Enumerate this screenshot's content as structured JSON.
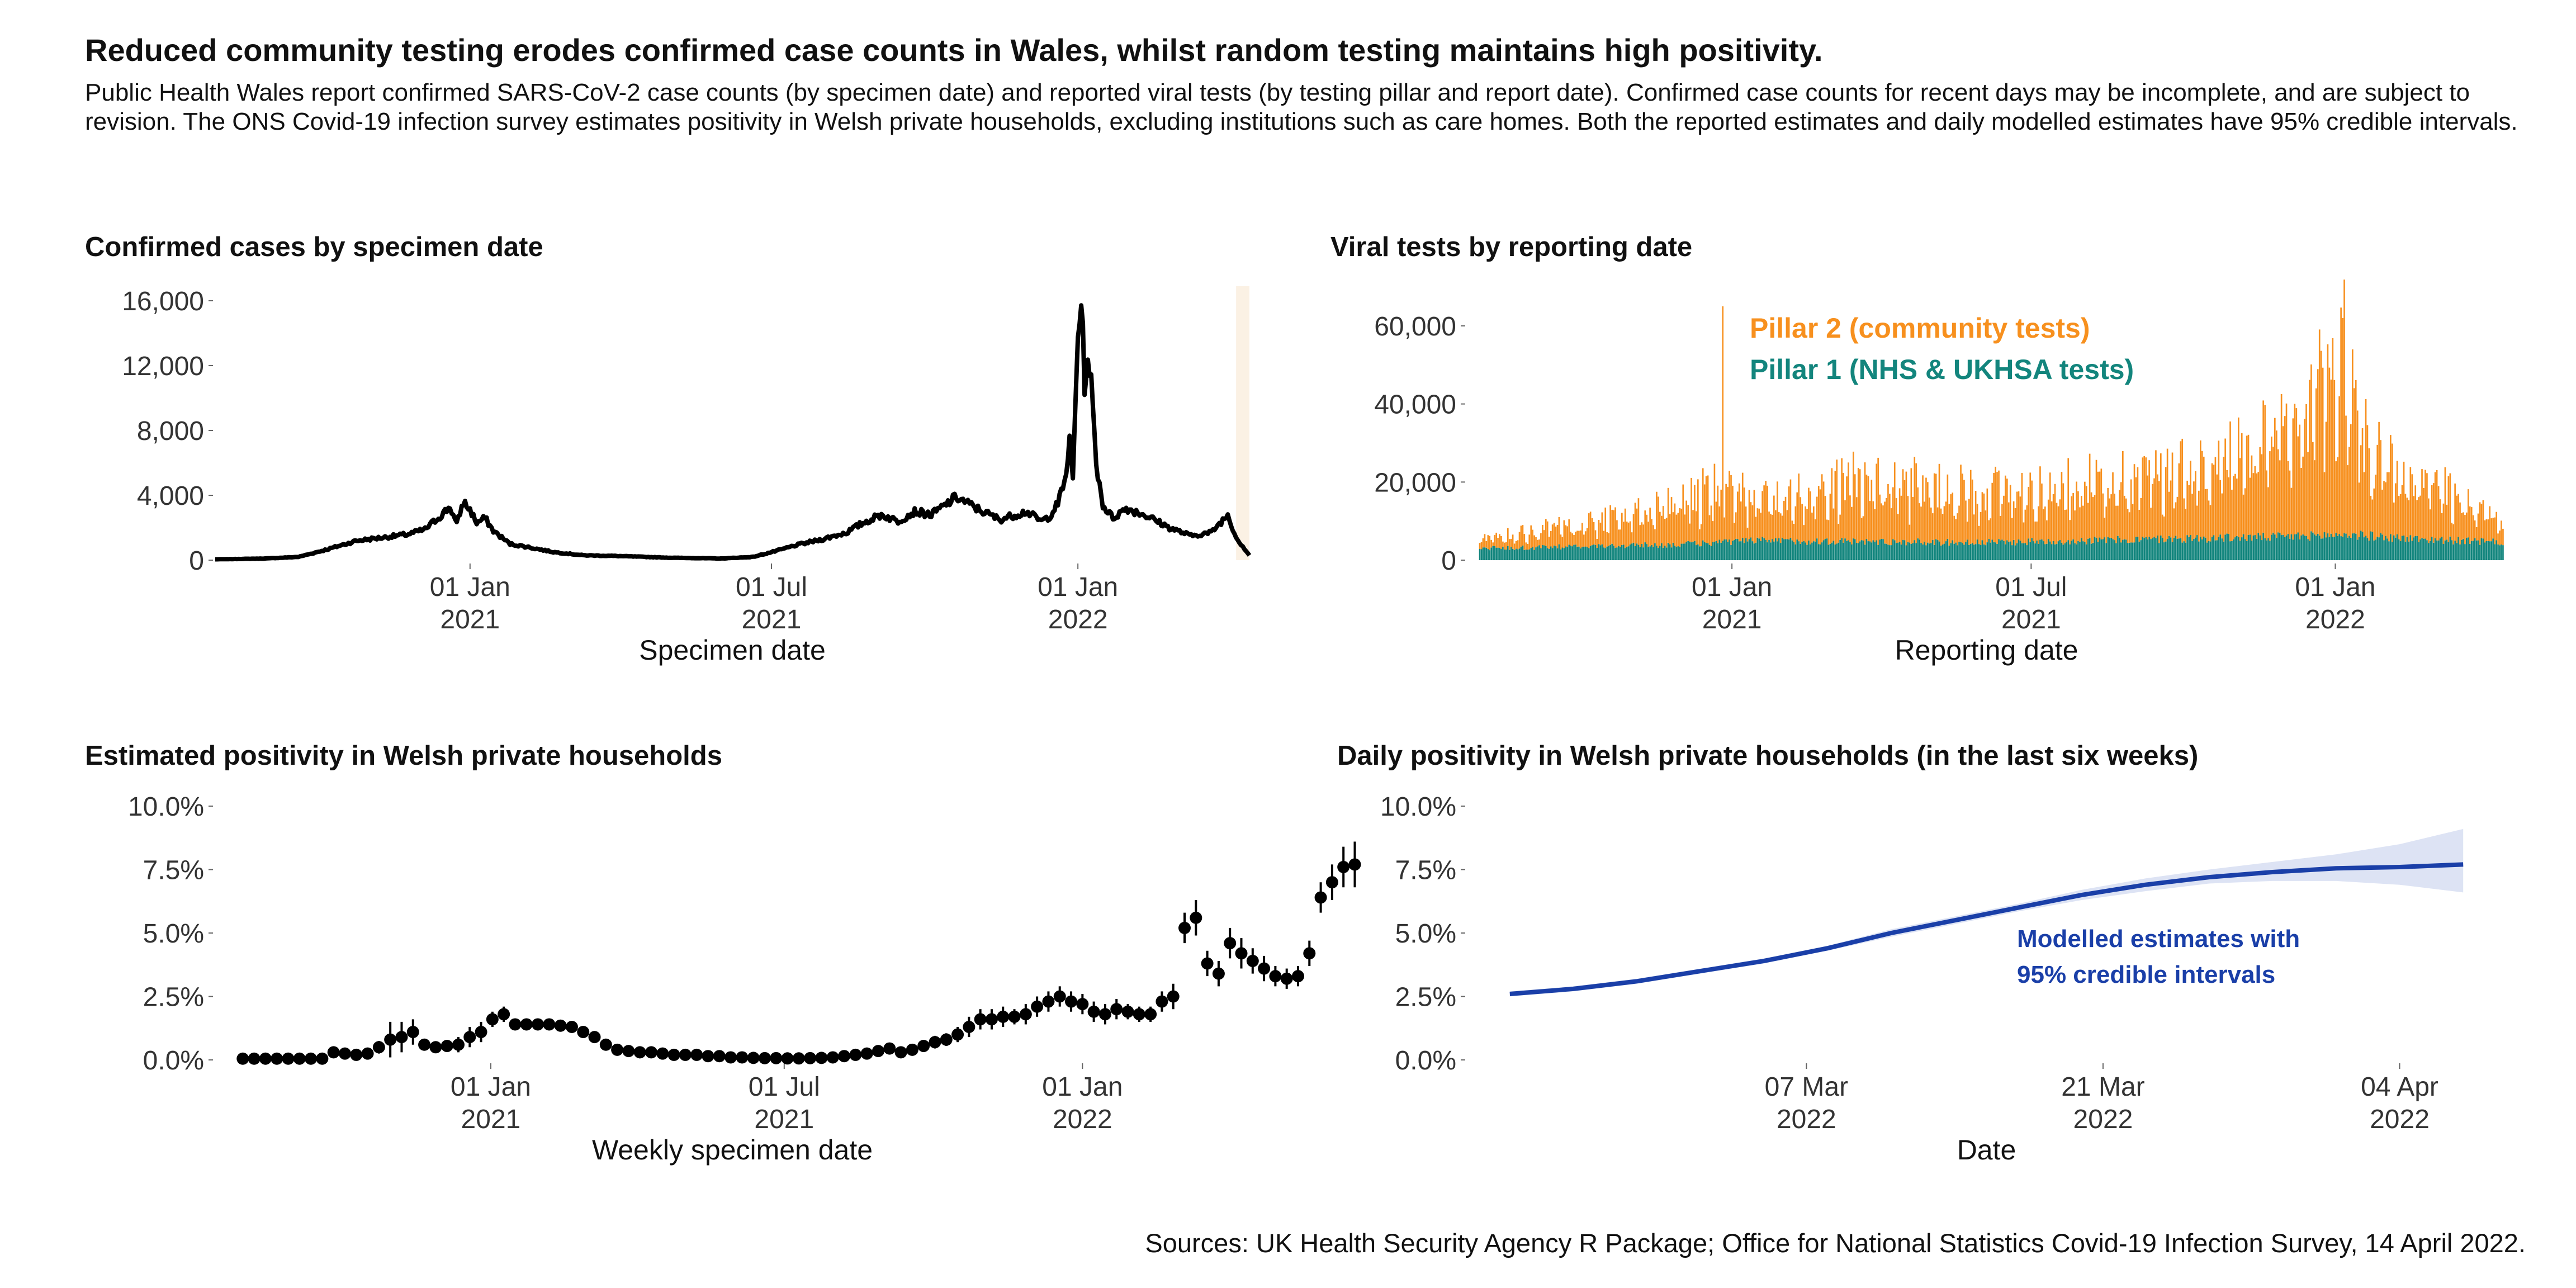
{
  "title": "Reduced community testing erodes confirmed case counts in Wales, whilst random testing maintains high positivity.",
  "subtitle": "Public Health Wales report confirmed SARS-CoV-2 case counts (by specimen date) and reported viral tests (by testing pillar and report date). Confirmed case counts for recent days may be incomplete, and are subject to revision. The ONS Covid-19 infection survey estimates positivity in Welsh private households, excluding institutions such as care homes. Both the reported estimates and daily modelled estimates have 95% credible intervals.",
  "sources": "Sources: UK Health Security Agency R Package; Office for National Statistics Covid-19 Infection Survey, 14 April 2022.",
  "colors": {
    "cases": "#000000",
    "pillar2": "#f7901e",
    "pillar1": "#13857d",
    "modelled": "#1a3fa8",
    "band": "#dde3f4",
    "incomplete": "#fbf1e4"
  },
  "chart_data": [
    {
      "type": "line",
      "title": "Confirmed cases by specimen date",
      "xlabel": "Specimen date",
      "ylabel": "",
      "ylim": [
        0,
        16000
      ],
      "yticks": [
        "0",
        "4,000",
        "8,000",
        "12,000",
        "16,000"
      ],
      "xticks": [
        {
          "date": "2021-01-01",
          "label": [
            "01 Jan",
            "2021"
          ]
        },
        {
          "date": "2021-07-01",
          "label": [
            "01 Jul",
            "2021"
          ]
        },
        {
          "date": "2022-01-01",
          "label": [
            "01 Jan",
            "2022"
          ]
        }
      ],
      "xlim": [
        "2020-08-01",
        "2022-04-14"
      ],
      "incomplete_from": "2022-04-06",
      "series": [
        {
          "x": [
            "2020-08-01",
            "2020-08-31",
            "2020-09-20",
            "2020-10-05",
            "2020-10-25",
            "2020-11-10",
            "2020-11-25",
            "2020-12-05",
            "2020-12-15",
            "2020-12-20",
            "2020-12-24",
            "2020-12-28",
            "2021-01-01",
            "2021-01-05",
            "2021-01-10",
            "2021-01-15",
            "2021-01-20",
            "2021-01-25",
            "2021-02-05",
            "2021-02-20",
            "2021-03-10",
            "2021-04-01",
            "2021-05-01",
            "2021-06-01",
            "2021-06-20",
            "2021-07-05",
            "2021-07-15",
            "2021-08-01",
            "2021-08-15",
            "2021-08-25",
            "2021-09-05",
            "2021-09-15",
            "2021-09-25",
            "2021-10-05",
            "2021-10-12",
            "2021-10-20",
            "2021-11-01",
            "2021-11-15",
            "2021-12-01",
            "2021-12-10",
            "2021-12-15",
            "2021-12-20",
            "2021-12-24",
            "2021-12-27",
            "2021-12-29",
            "2022-01-01",
            "2022-01-03",
            "2022-01-05",
            "2022-01-08",
            "2022-01-12",
            "2022-01-16",
            "2022-01-22",
            "2022-01-30",
            "2022-02-10",
            "2022-02-25",
            "2022-03-10",
            "2022-03-22",
            "2022-04-01",
            "2022-04-06",
            "2022-04-14"
          ],
          "y": [
            50,
            100,
            200,
            600,
            1200,
            1400,
            1600,
            1900,
            2800,
            3300,
            2200,
            3600,
            3100,
            2300,
            2600,
            1800,
            1400,
            1000,
            800,
            500,
            300,
            250,
            150,
            100,
            200,
            600,
            900,
            1300,
            1700,
            2300,
            2800,
            2400,
            3000,
            2800,
            3300,
            3900,
            3200,
            2500,
            3000,
            2400,
            2700,
            3500,
            4800,
            7200,
            5000,
            14000,
            16100,
            11000,
            12300,
            6000,
            3400,
            2600,
            3200,
            2800,
            2000,
            1500,
            1700,
            2800,
            1400,
            300
          ]
        }
      ]
    },
    {
      "type": "bar",
      "stacked": true,
      "title": "Viral tests by reporting date",
      "xlabel": "Reporting date",
      "ylabel": "",
      "ylim": [
        0,
        65000
      ],
      "yticks": [
        "0",
        "20,000",
        "40,000",
        "60,000"
      ],
      "xticks": [
        {
          "date": "2021-01-01",
          "label": [
            "01 Jan",
            "2021"
          ]
        },
        {
          "date": "2021-07-01",
          "label": [
            "01 Jul",
            "2021"
          ]
        },
        {
          "date": "2022-01-01",
          "label": [
            "01 Jan",
            "2022"
          ]
        }
      ],
      "xlim": [
        "2020-07-25",
        "2022-04-14"
      ],
      "series": [
        {
          "name": "Pillar 2 (community tests)",
          "dates": [
            "2020-08-01",
            "2020-10-01",
            "2020-12-01",
            "2020-12-26",
            "2021-01-15",
            "2021-03-15",
            "2021-05-15",
            "2021-07-15",
            "2021-09-15",
            "2021-11-01",
            "2021-12-15",
            "2022-01-05",
            "2022-01-20",
            "2022-02-15",
            "2022-03-15",
            "2022-04-05",
            "2022-04-12"
          ],
          "values": [
            2500,
            6000,
            11000,
            15000,
            10000,
            16000,
            14000,
            14000,
            18000,
            22000,
            30000,
            50000,
            23000,
            16000,
            12000,
            7000,
            4000
          ]
        },
        {
          "name": "Pillar 1 (NHS & UKHSA tests)",
          "dates": [
            "2020-08-01",
            "2020-12-01",
            "2021-01-15",
            "2021-06-01",
            "2021-12-01",
            "2022-01-10",
            "2022-02-15",
            "2022-04-12"
          ],
          "values": [
            3000,
            4000,
            5000,
            4500,
            6000,
            6500,
            5500,
            4500
          ]
        }
      ],
      "spikes": [
        {
          "date": "2020-12-26",
          "total": 65000
        },
        {
          "date": "2022-01-05",
          "total": 62000
        }
      ]
    },
    {
      "type": "scatter",
      "title": "Estimated positivity in Welsh private households",
      "xlabel": "Weekly specimen date",
      "ylabel": "",
      "ylim": [
        0,
        10
      ],
      "yticks": [
        "0.0%",
        "2.5%",
        "5.0%",
        "7.5%",
        "10.0%"
      ],
      "xticks": [
        {
          "date": "2021-01-01",
          "label": [
            "01 Jan",
            "2021"
          ]
        },
        {
          "date": "2021-07-01",
          "label": [
            "01 Jul",
            "2021"
          ]
        },
        {
          "date": "2022-01-01",
          "label": [
            "01 Jan",
            "2022"
          ]
        }
      ],
      "xlim": [
        "2020-07-15",
        "2022-04-14"
      ],
      "first_week": "2020-08-01",
      "values": [
        0.05,
        0.05,
        0.05,
        0.05,
        0.05,
        0.05,
        0.05,
        0.05,
        0.3,
        0.25,
        0.2,
        0.25,
        0.5,
        0.8,
        0.9,
        1.1,
        0.6,
        0.5,
        0.55,
        0.6,
        0.9,
        1.1,
        1.6,
        1.8,
        1.4,
        1.4,
        1.4,
        1.4,
        1.35,
        1.3,
        1.1,
        0.9,
        0.6,
        0.4,
        0.35,
        0.3,
        0.3,
        0.25,
        0.2,
        0.2,
        0.2,
        0.15,
        0.15,
        0.1,
        0.1,
        0.08,
        0.07,
        0.07,
        0.06,
        0.06,
        0.07,
        0.08,
        0.1,
        0.15,
        0.2,
        0.25,
        0.35,
        0.45,
        0.3,
        0.4,
        0.55,
        0.7,
        0.8,
        1.0,
        1.3,
        1.6,
        1.6,
        1.7,
        1.7,
        1.8,
        2.1,
        2.3,
        2.5,
        2.3,
        2.2,
        1.9,
        1.8,
        2.0,
        1.9,
        1.8,
        1.8,
        2.3,
        2.5,
        5.2,
        5.6,
        3.8,
        3.4,
        4.6,
        4.2,
        3.9,
        3.6,
        3.3,
        3.2,
        3.3,
        4.2,
        6.4,
        7.0,
        7.6,
        7.7
      ],
      "errors": [
        0.05,
        0.05,
        0.05,
        0.05,
        0.05,
        0.05,
        0.05,
        0.05,
        0.15,
        0.15,
        0.15,
        0.15,
        0.25,
        0.7,
        0.6,
        0.5,
        0.2,
        0.2,
        0.2,
        0.3,
        0.4,
        0.4,
        0.3,
        0.3,
        0.2,
        0.2,
        0.2,
        0.2,
        0.2,
        0.2,
        0.2,
        0.1,
        0.1,
        0.1,
        0.1,
        0.1,
        0.1,
        0.05,
        0.05,
        0.05,
        0.05,
        0.05,
        0.05,
        0.05,
        0.05,
        0.05,
        0.05,
        0.05,
        0.05,
        0.05,
        0.05,
        0.05,
        0.05,
        0.1,
        0.1,
        0.1,
        0.15,
        0.2,
        0.15,
        0.2,
        0.2,
        0.25,
        0.25,
        0.3,
        0.4,
        0.4,
        0.4,
        0.4,
        0.3,
        0.4,
        0.4,
        0.4,
        0.4,
        0.4,
        0.4,
        0.4,
        0.4,
        0.4,
        0.3,
        0.3,
        0.3,
        0.4,
        0.5,
        0.6,
        0.7,
        0.5,
        0.5,
        0.6,
        0.6,
        0.5,
        0.5,
        0.4,
        0.4,
        0.4,
        0.5,
        0.6,
        0.7,
        0.8,
        0.9
      ]
    },
    {
      "type": "line",
      "title": "Daily positivity in Welsh private households (in the last six weeks)",
      "xlabel": "Date",
      "ylabel": "",
      "ylim": [
        0,
        10
      ],
      "yticks": [
        "0.0%",
        "2.5%",
        "5.0%",
        "7.5%",
        "10.0%"
      ],
      "xticks": [
        {
          "date": "2022-03-07",
          "label": [
            "07 Mar",
            "2022"
          ]
        },
        {
          "date": "2022-03-21",
          "label": [
            "21 Mar",
            "2022"
          ]
        },
        {
          "date": "2022-04-04",
          "label": [
            "04 Apr",
            "2022"
          ]
        }
      ],
      "xlim": [
        "2022-02-19",
        "2022-04-09"
      ],
      "annotation": [
        "Modelled estimates with",
        "95% credible intervals"
      ],
      "series": [
        {
          "x": [
            "2022-02-21",
            "2022-02-24",
            "2022-02-27",
            "2022-03-02",
            "2022-03-05",
            "2022-03-08",
            "2022-03-11",
            "2022-03-14",
            "2022-03-17",
            "2022-03-20",
            "2022-03-23",
            "2022-03-26",
            "2022-03-29",
            "2022-04-01",
            "2022-04-04",
            "2022-04-07"
          ],
          "y": [
            2.6,
            2.8,
            3.1,
            3.5,
            3.9,
            4.4,
            5.0,
            5.5,
            6.0,
            6.5,
            6.9,
            7.2,
            7.4,
            7.55,
            7.6,
            7.7
          ],
          "lower": [
            2.5,
            2.7,
            3.0,
            3.4,
            3.8,
            4.3,
            4.85,
            5.35,
            5.85,
            6.3,
            6.65,
            6.95,
            7.05,
            7.05,
            6.9,
            6.6
          ],
          "upper": [
            2.7,
            2.9,
            3.2,
            3.6,
            4.0,
            4.5,
            5.15,
            5.65,
            6.15,
            6.7,
            7.15,
            7.5,
            7.8,
            8.1,
            8.5,
            9.1
          ]
        }
      ]
    }
  ]
}
